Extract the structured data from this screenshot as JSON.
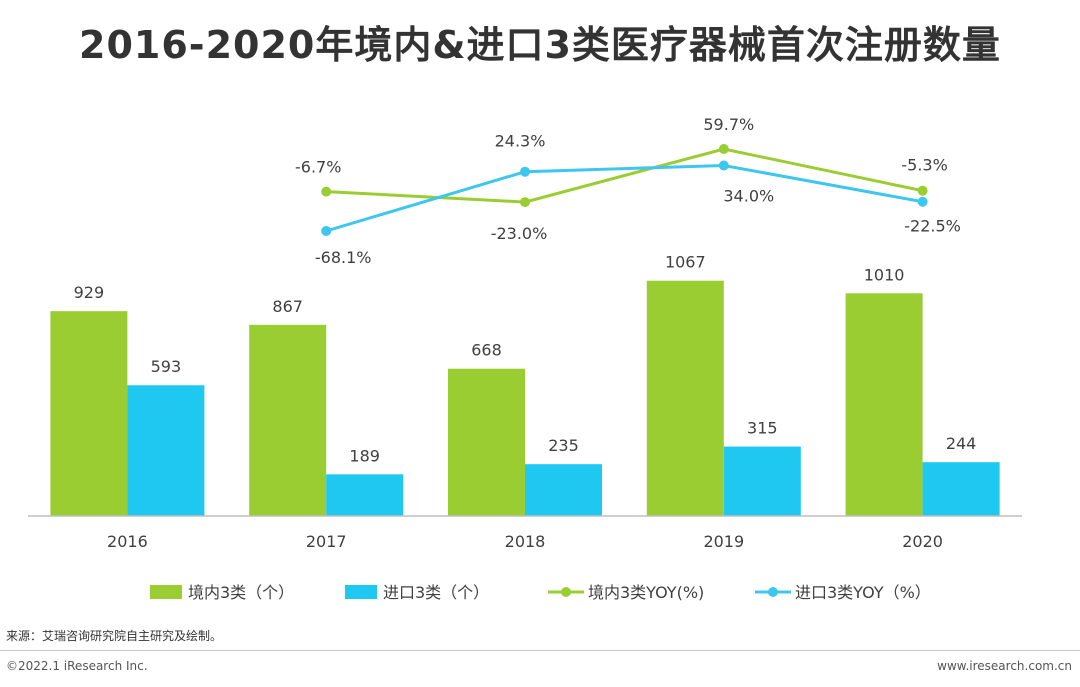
{
  "chart_data": {
    "type": "bar",
    "title": "2016-2020年境内&进口3类医疗器械首次注册数量",
    "categories": [
      "2016",
      "2017",
      "2018",
      "2019",
      "2020"
    ],
    "series": [
      {
        "name": "境内3类（个）",
        "kind": "bar",
        "color": "#9ACD32",
        "values": [
          929,
          867,
          668,
          1067,
          1010
        ],
        "labels": [
          "929",
          "867",
          "668",
          "1067",
          "1010"
        ]
      },
      {
        "name": "进口3类（个）",
        "kind": "bar",
        "color": "#1EC8F0",
        "values": [
          593,
          189,
          235,
          315,
          244
        ],
        "labels": [
          "593",
          "189",
          "235",
          "315",
          "244"
        ]
      },
      {
        "name": "境内3类YOY(%)",
        "kind": "line",
        "color": "#9ACD32",
        "values": [
          null,
          -6.7,
          -23.0,
          59.7,
          -5.3
        ],
        "labels": [
          "",
          "-6.7%",
          "-23.0%",
          "59.7%",
          "-5.3%"
        ]
      },
      {
        "name": "进口3类YOY（%）",
        "kind": "line",
        "color": "#3EC6EE",
        "values": [
          null,
          -68.1,
          24.3,
          34.0,
          -22.5
        ],
        "labels": [
          "",
          "-68.1%",
          "24.3%",
          "34.0%",
          "-22.5%"
        ]
      }
    ],
    "ylim_bars": [
      0,
      1100
    ],
    "ylim_lines": [
      -80,
      70
    ],
    "xlabel": "",
    "ylabel": "",
    "legend_position": "bottom",
    "grid": false
  },
  "footer": {
    "source": "来源：艾瑞咨询研究院自主研究及绘制。",
    "copyright": "©2022.1 iResearch Inc.",
    "website": "www.iresearch.com.cn"
  }
}
